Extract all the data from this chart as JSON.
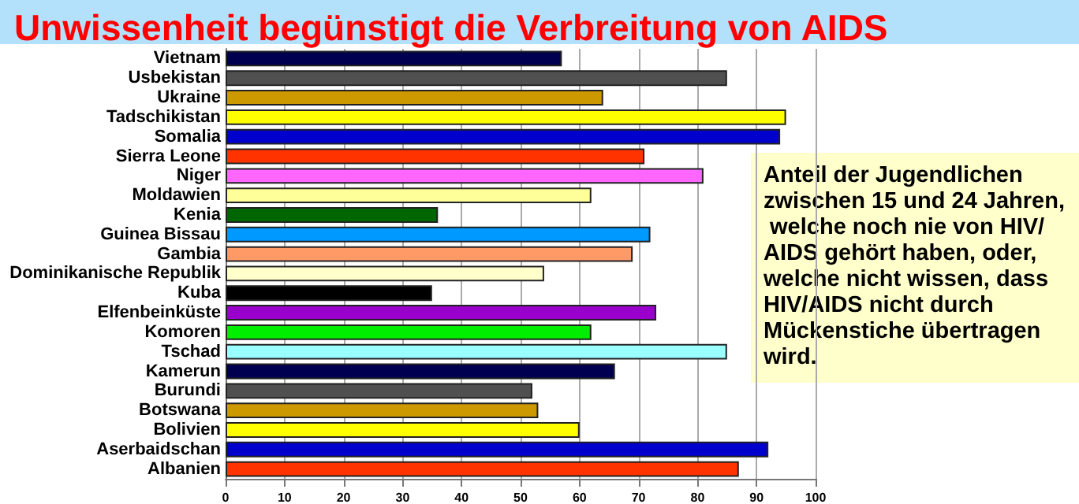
{
  "chart_data": {
    "type": "bar",
    "orientation": "horizontal",
    "title": "Unwissenheit begünstigt die Verbreitung von AIDS",
    "categories": [
      "Vietnam",
      "Usbekistan",
      "Ukraine",
      "Tadschikistan",
      "Somalia",
      "Sierra Leone",
      "Niger",
      "Moldawien",
      "Kenia",
      "Guinea Bissau",
      "Gambia",
      "Dominikanische Republik",
      "Kuba",
      "Elfenbeinküste",
      "Komoren",
      "Tschad",
      "Kamerun",
      "Burundi",
      "Botswana",
      "Bolivien",
      "Aserbaidschan",
      "Albanien"
    ],
    "values": [
      57,
      85,
      64,
      95,
      94,
      71,
      81,
      62,
      36,
      72,
      69,
      54,
      35,
      73,
      62,
      85,
      66,
      52,
      53,
      60,
      92,
      87
    ],
    "colors": [
      "#000050",
      "#505050",
      "#cc9900",
      "#ffff00",
      "#0000cc",
      "#ff3300",
      "#ff66ff",
      "#ffff99",
      "#006600",
      "#0099ff",
      "#ff9966",
      "#ffffcc",
      "#000000",
      "#9900cc",
      "#00ee00",
      "#99ffff",
      "#000050",
      "#505050",
      "#cc9900",
      "#ffff00",
      "#0000cc",
      "#ff3300"
    ],
    "xlim": [
      0,
      100
    ],
    "xticks": [
      0,
      10,
      20,
      30,
      40,
      50,
      60,
      70,
      80,
      90,
      100
    ],
    "grid": "x",
    "annotations": [
      "Anteil der Jugendlichen zwischen 15 und 24 Jahren, welche noch nie von HIV/AIDS gehört haben, oder, welche nicht wissen, dass HIV/AIDS nicht durch Mückenstiche übertragen wird."
    ]
  }
}
